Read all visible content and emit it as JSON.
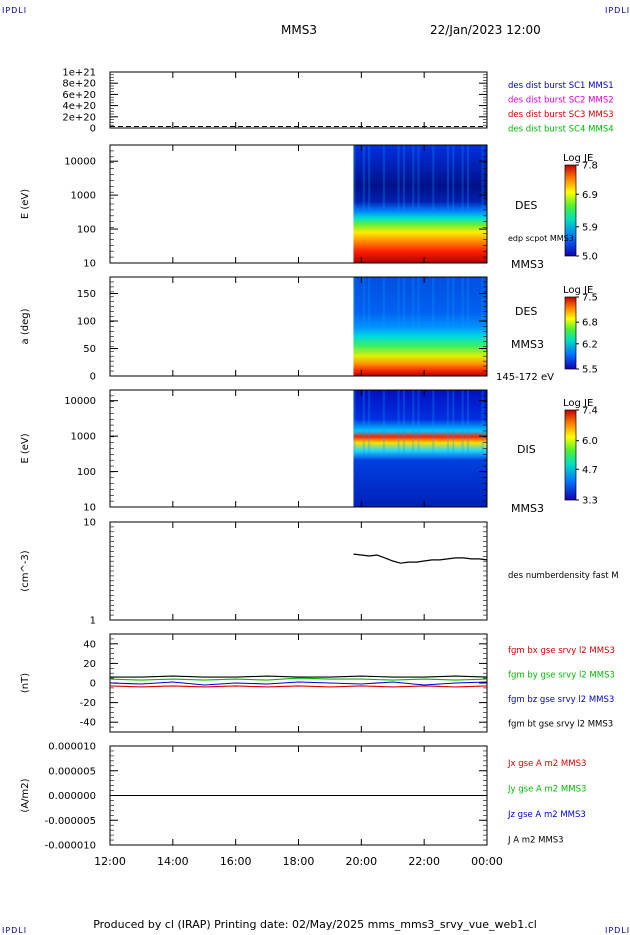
{
  "header": {
    "mission": "MMS3",
    "datetime": "22/Jan/2023 12:00",
    "corner_label": "IPDLI"
  },
  "footer": {
    "text": "Produced by cl (IRAP)   Printing date: 02/May/2025   mms_mms3_srvy_vue_web1.cl"
  },
  "x_axis": {
    "tick_labels": [
      "12:00",
      "14:00",
      "16:00",
      "18:00",
      "20:00",
      "22:00",
      "00:00"
    ]
  },
  "chart_data": [
    {
      "type": "line",
      "panel": "distribution-burst",
      "ylabel": "",
      "y_tick_labels": [
        "1e+21",
        "8e+20",
        "6e+20",
        "4e+20",
        "2e+20",
        "0"
      ],
      "ylim": [
        0,
        1e+21
      ],
      "x": [
        "12:00",
        "00:00"
      ],
      "series": [
        {
          "name": "des dist burst SC1 MMS1",
          "color": "#0000dd",
          "values": [
            0,
            0
          ]
        }
      ],
      "legend": [
        {
          "text": "des dist burst SC1 MMS1",
          "color": "#0000dd"
        },
        {
          "text": "des dist burst SC2 MMS2",
          "color": "#dd00dd"
        },
        {
          "text": "des dist burst SC3 MMS3",
          "color": "#dd0000"
        },
        {
          "text": "des dist burst SC4 MMS4",
          "color": "#00bb00"
        }
      ]
    },
    {
      "type": "heatmap",
      "panel": "des-energy",
      "ylabel": "E (eV)",
      "yscale": "log",
      "y_tick_labels": [
        "10000",
        "1000",
        "100",
        "10"
      ],
      "ylim": [
        10,
        30000
      ],
      "data_start": "19:45",
      "right_labels": [
        "DES",
        "edp scpot MMS3",
        "MMS3"
      ],
      "colorbar": {
        "title": "Log JE",
        "ticks": [
          "7.8",
          "6.9",
          "5.9",
          "5.0"
        ],
        "range": [
          5.0,
          7.8
        ]
      }
    },
    {
      "type": "heatmap",
      "panel": "des-pitch-angle",
      "ylabel": "a (deg)",
      "y_tick_labels": [
        "150",
        "100",
        "50",
        "0"
      ],
      "ylim": [
        0,
        180
      ],
      "data_start": "19:45",
      "right_labels": [
        "DES",
        "MMS3",
        "145-172 eV"
      ],
      "colorbar": {
        "title": "Log JE",
        "ticks": [
          "7.5",
          "6.8",
          "6.2",
          "5.5"
        ],
        "range": [
          5.5,
          7.5
        ]
      }
    },
    {
      "type": "heatmap",
      "panel": "dis-energy",
      "ylabel": "E (eV)",
      "yscale": "log",
      "y_tick_labels": [
        "10000",
        "1000",
        "100",
        "10"
      ],
      "ylim": [
        10,
        20000
      ],
      "data_start": "19:45",
      "right_labels": [
        "DIS",
        "MMS3"
      ],
      "colorbar": {
        "title": "Log JE",
        "ticks": [
          "7.4",
          "6.0",
          "4.7",
          "3.3"
        ],
        "range": [
          3.3,
          7.4
        ]
      }
    },
    {
      "type": "line",
      "panel": "density",
      "ylabel": "(cm^-3)",
      "yscale": "log",
      "y_tick_labels": [
        "10",
        "1"
      ],
      "ylim": [
        1,
        10
      ],
      "legend": [
        {
          "text": "des numberdensity fast M",
          "color": "#000000"
        }
      ],
      "series": [
        {
          "name": "des numberdensity fast M",
          "color": "#000000",
          "x": [
            "19:45",
            "20:00",
            "20:15",
            "20:30",
            "20:45",
            "21:00",
            "21:15",
            "21:30",
            "21:45",
            "22:00",
            "22:15",
            "22:30",
            "22:45",
            "23:00",
            "23:15",
            "23:30",
            "23:45",
            "00:00"
          ],
          "values": [
            4.7,
            4.6,
            4.5,
            4.6,
            4.3,
            4.0,
            3.8,
            3.9,
            3.9,
            4.0,
            4.1,
            4.1,
            4.2,
            4.3,
            4.3,
            4.2,
            4.2,
            4.1
          ]
        }
      ]
    },
    {
      "type": "line",
      "panel": "magnetic-field",
      "ylabel": "(nT)",
      "y_tick_labels": [
        "40",
        "20",
        "0",
        "-20",
        "-40"
      ],
      "ylim": [
        -50,
        50
      ],
      "x": [
        "12:00",
        "13:00",
        "14:00",
        "15:00",
        "16:00",
        "17:00",
        "18:00",
        "19:00",
        "20:00",
        "21:00",
        "22:00",
        "23:00",
        "00:00"
      ],
      "series": [
        {
          "name": "fgm bx gse srvy l2 MMS3",
          "color": "#dd0000",
          "values": [
            -3,
            -4,
            -3,
            -4,
            -3,
            -4,
            -3,
            -4,
            -3,
            -4,
            -3,
            -4,
            -3
          ]
        },
        {
          "name": "fgm by gse srvy l2 MMS3",
          "color": "#00bb00",
          "values": [
            4,
            3,
            4,
            3,
            4,
            3,
            5,
            4,
            4,
            3,
            4,
            3,
            4
          ]
        },
        {
          "name": "fgm bz gse srvy l2 MMS3",
          "color": "#0000dd",
          "values": [
            0,
            -1,
            1,
            -2,
            0,
            -1,
            1,
            0,
            -1,
            1,
            -2,
            0,
            1
          ]
        },
        {
          "name": "fgm bt gse srvy l2 MMS3",
          "color": "#000000",
          "values": [
            6,
            6,
            7,
            6,
            6,
            7,
            6,
            6,
            7,
            6,
            6,
            7,
            6
          ]
        }
      ]
    },
    {
      "type": "line",
      "panel": "current-density",
      "ylabel": "(A/m2)",
      "y_tick_labels": [
        "0.000010",
        "0.000005",
        "0.000000",
        "-0.000005",
        "-0.000010"
      ],
      "ylim": [
        -1e-05,
        1e-05
      ],
      "x": [
        "12:00",
        "00:00"
      ],
      "series": [
        {
          "name": "Jx gse A m2 MMS3",
          "color": "#dd0000",
          "values": [
            0,
            0
          ]
        },
        {
          "name": "Jy gse A m2 MMS3",
          "color": "#00bb00",
          "values": [
            0,
            0
          ]
        },
        {
          "name": "Jz gse A m2 MMS3",
          "color": "#0000dd",
          "values": [
            0,
            0
          ]
        },
        {
          "name": "J A m2 MMS3",
          "color": "#000000",
          "values": [
            0,
            0
          ]
        }
      ]
    }
  ]
}
